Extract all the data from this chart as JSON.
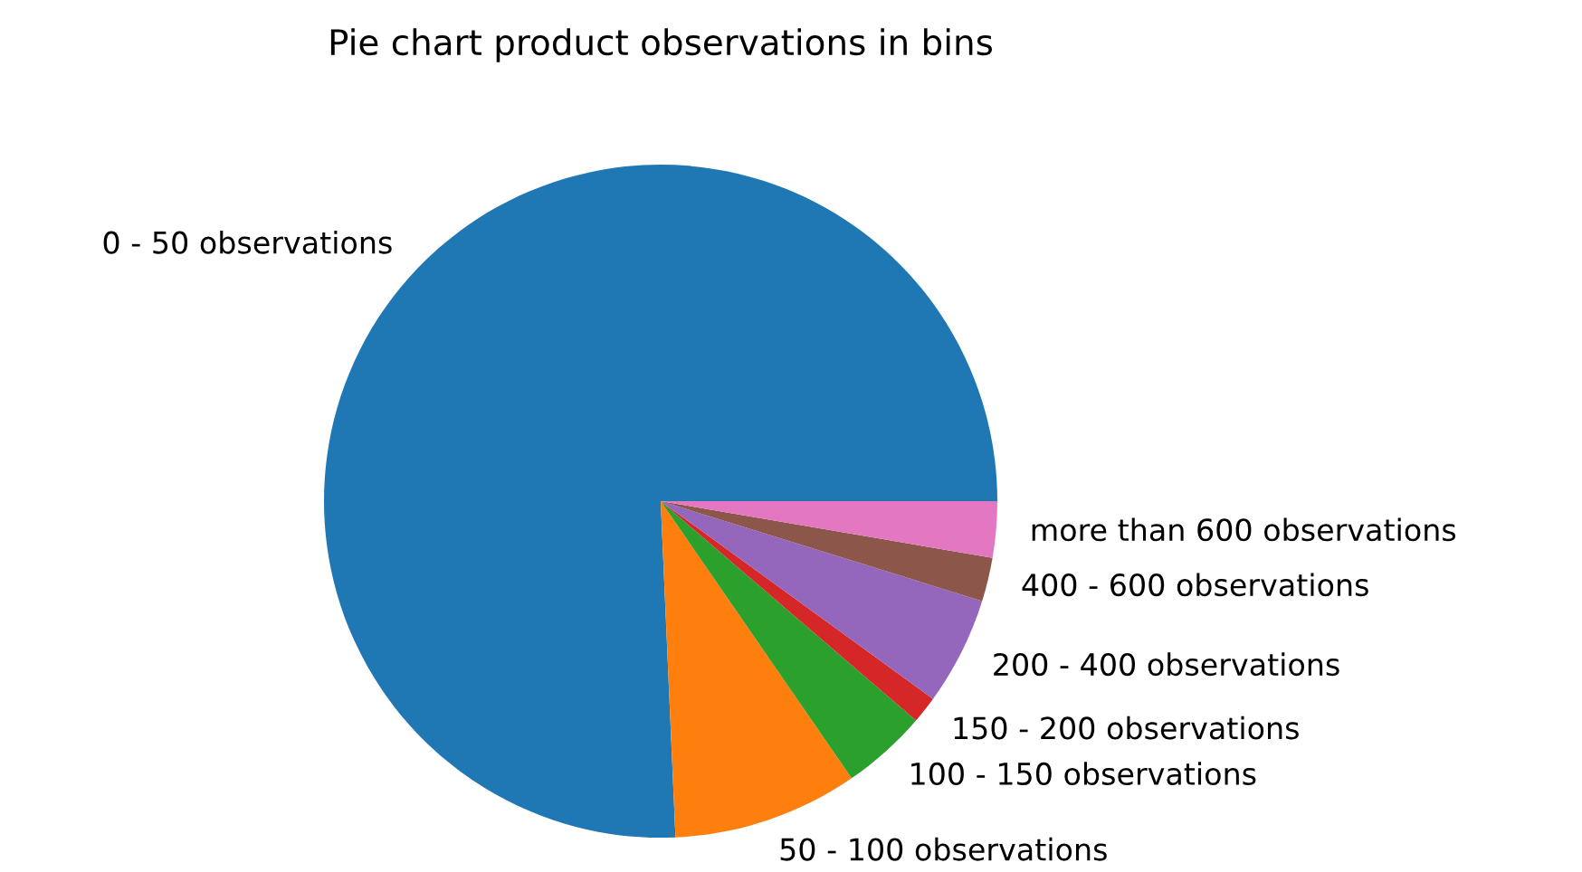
{
  "chart_data": {
    "type": "pie",
    "title": "Pie chart product observations in bins",
    "categories": [
      "0 - 50 observations",
      "50 - 100 observations",
      "100 - 150 observations",
      "150 - 200 observations",
      "200 - 400 observations",
      "400 - 600 observations",
      "more than 600 observations"
    ],
    "values": [
      75.7,
      8.9,
      4.1,
      1.3,
      5.2,
      2.1,
      2.7
    ],
    "colors": [
      "#1f77b4",
      "#ff7f0e",
      "#2ca02c",
      "#d62728",
      "#9467bd",
      "#8c564b",
      "#e377c2"
    ]
  }
}
